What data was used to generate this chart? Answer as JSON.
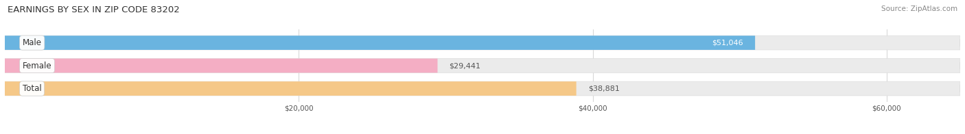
{
  "title": "EARNINGS BY SEX IN ZIP CODE 83202",
  "source": "Source: ZipAtlas.com",
  "categories": [
    "Male",
    "Female",
    "Total"
  ],
  "values": [
    51046,
    29441,
    38881
  ],
  "bar_colors": [
    "#6ab4e0",
    "#f4aec4",
    "#f5c888"
  ],
  "bg_bar_color": "#ebebeb",
  "bar_labels": [
    "$51,046",
    "$29,441",
    "$38,881"
  ],
  "label_inside": [
    true,
    false,
    false
  ],
  "x_min": 0,
  "x_max": 65000,
  "x_ticks": [
    20000,
    40000,
    60000
  ],
  "x_tick_labels": [
    "$20,000",
    "$40,000",
    "$60,000"
  ],
  "bar_height": 0.62,
  "figsize": [
    14.06,
    1.96
  ],
  "dpi": 100,
  "bg_color": "#ffffff",
  "title_fontsize": 9.5,
  "source_fontsize": 7.5,
  "label_fontsize": 8,
  "tick_fontsize": 7.5,
  "cat_fontsize": 8.5,
  "grid_color": "#d8d8d8",
  "text_color": "#555555",
  "cat_text_color": "#333333"
}
